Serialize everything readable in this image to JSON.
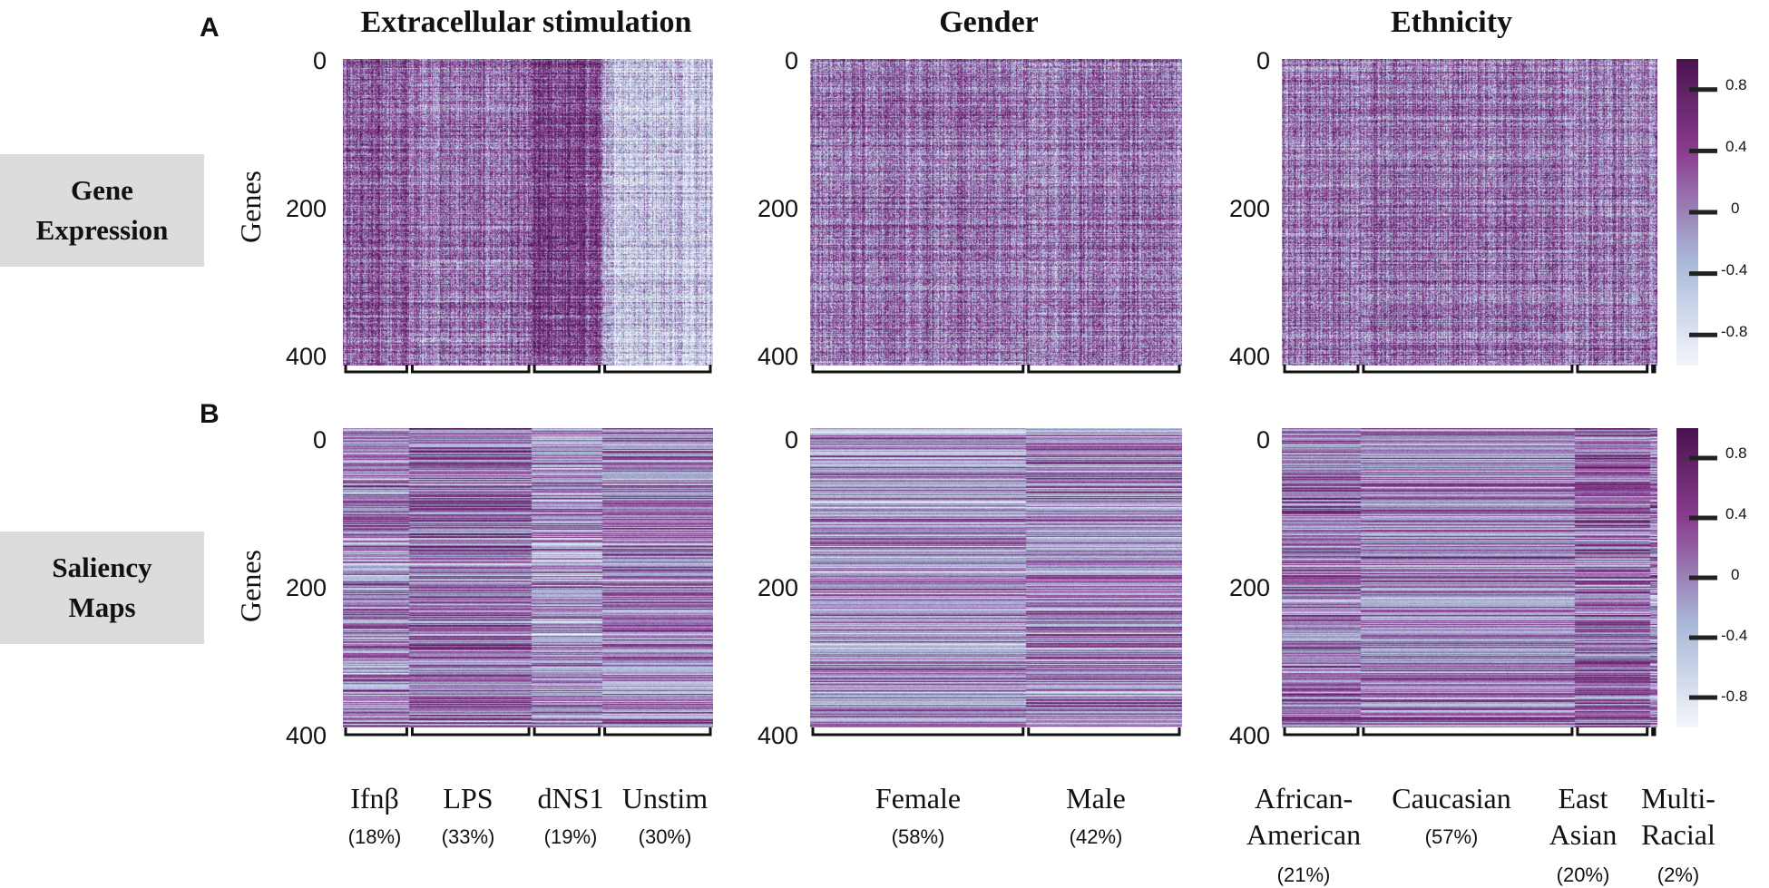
{
  "panels": {
    "A": "A",
    "B": "B"
  },
  "column_titles": [
    "Extracellular stimulation",
    "Gender",
    "Ethnicity"
  ],
  "row_labels": {
    "gene_expression": "Gene\nExpression",
    "saliency_maps": "Saliency\nMaps"
  },
  "y_axis_label": "Genes",
  "colors": {
    "cmap_low": "#f4f6fb",
    "cmap_mid": "#a9b8d8",
    "cmap_high": "#4a1350",
    "cmap_upper": "#8a3d8f",
    "bracket": "#111111"
  },
  "chart_data": [
    {
      "type": "heatmap",
      "panel": "A",
      "title": "Extracellular stimulation",
      "ylabel": "Genes",
      "yticks": [
        "0",
        "200",
        "400"
      ],
      "ylim": [
        0,
        400
      ],
      "groups": [
        {
          "name": "Ifnβ",
          "pct": "(18%)",
          "share": 18
        },
        {
          "name": "LPS",
          "pct": "(33%)",
          "share": 33
        },
        {
          "name": "dNS1",
          "pct": "(19%)",
          "share": 19
        },
        {
          "name": "Unstim",
          "pct": "(30%)",
          "share": 30
        }
      ]
    },
    {
      "type": "heatmap",
      "panel": "A",
      "title": "Gender",
      "ylabel": "",
      "yticks": [
        "0",
        "200",
        "400"
      ],
      "ylim": [
        0,
        400
      ],
      "groups": [
        {
          "name": "Female",
          "pct": "(58%)",
          "share": 58
        },
        {
          "name": "Male",
          "pct": "(42%)",
          "share": 42
        }
      ]
    },
    {
      "type": "heatmap",
      "panel": "A",
      "title": "Ethnicity",
      "ylabel": "",
      "yticks": [
        "0",
        "200",
        "400"
      ],
      "ylim": [
        0,
        400
      ],
      "groups": [
        {
          "name": "African-\nAmerican",
          "pct": "(21%)",
          "share": 21
        },
        {
          "name": "Caucasian",
          "pct": "(57%)",
          "share": 57
        },
        {
          "name": "East\nAsian",
          "pct": "(20%)",
          "share": 20
        },
        {
          "name": "Multi-\nRacial",
          "pct": "(2%)",
          "share": 2
        }
      ],
      "colorbar": {
        "ticks": [
          "0.8",
          "0.4",
          "0",
          "-0.4",
          "-0.8"
        ],
        "values": [
          0.8,
          0.4,
          0,
          -0.4,
          -0.8
        ],
        "range": [
          -1,
          1
        ]
      }
    },
    {
      "type": "heatmap",
      "panel": "B",
      "title": "Extracellular stimulation",
      "ylabel": "Genes",
      "yticks": [
        "0",
        "200",
        "400"
      ],
      "ylim": [
        0,
        400
      ],
      "groups": [
        {
          "name": "Ifnβ",
          "share": 18
        },
        {
          "name": "LPS",
          "share": 33
        },
        {
          "name": "dNS1",
          "share": 19
        },
        {
          "name": "Unstim",
          "share": 30
        }
      ]
    },
    {
      "type": "heatmap",
      "panel": "B",
      "title": "Gender",
      "ylabel": "",
      "yticks": [
        "0",
        "200",
        "400"
      ],
      "ylim": [
        0,
        400
      ],
      "groups": [
        {
          "name": "Female",
          "share": 58
        },
        {
          "name": "Male",
          "share": 42
        }
      ]
    },
    {
      "type": "heatmap",
      "panel": "B",
      "title": "Ethnicity",
      "ylabel": "",
      "yticks": [
        "0",
        "200",
        "400"
      ],
      "ylim": [
        0,
        400
      ],
      "groups": [
        {
          "name": "African-\nAmerican",
          "share": 21
        },
        {
          "name": "Caucasian",
          "share": 57
        },
        {
          "name": "East\nAsian",
          "share": 20
        },
        {
          "name": "Multi-\nRacial",
          "share": 2
        }
      ],
      "colorbar": {
        "ticks": [
          "0.8",
          "0.4",
          "0",
          "-0.4",
          "-0.8"
        ],
        "values": [
          0.8,
          0.4,
          0,
          -0.4,
          -0.8
        ],
        "range": [
          -1,
          1
        ]
      }
    }
  ]
}
